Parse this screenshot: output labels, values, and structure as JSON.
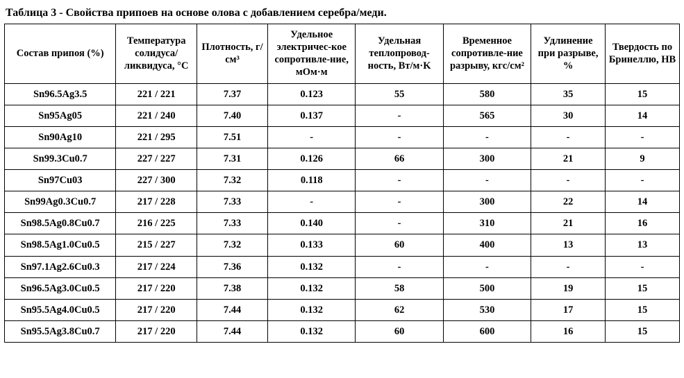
{
  "caption": "Таблица 3 - Свойства припоев на основе олова с добавлением серебра/меди.",
  "table": {
    "columns": [
      "Состав припоя (%)",
      "Температура солидуса/ ликвидуса, °C",
      "Плотность, г/см³",
      "Удельное электричес-кое сопротивле-ние, мОм·м",
      "Удельная теплопровод-ность, Вт/м·K",
      "Временное сопротивле-ние разрыву, кгс/см²",
      "Удлинение при разрыве, %",
      "Твердость по Бринеллю, HB"
    ],
    "rows": [
      [
        "Sn96.5Ag3.5",
        "221 / 221",
        "7.37",
        "0.123",
        "55",
        "580",
        "35",
        "15"
      ],
      [
        "Sn95Ag05",
        "221 / 240",
        "7.40",
        "0.137",
        "-",
        "565",
        "30",
        "14"
      ],
      [
        "Sn90Ag10",
        "221 / 295",
        "7.51",
        "-",
        "-",
        "-",
        "-",
        "-"
      ],
      [
        "Sn99.3Cu0.7",
        "227 / 227",
        "7.31",
        "0.126",
        "66",
        "300",
        "21",
        "9"
      ],
      [
        "Sn97Cu03",
        "227 / 300",
        "7.32",
        "0.118",
        "-",
        "-",
        "-",
        "-"
      ],
      [
        "Sn99Ag0.3Cu0.7",
        "217 / 228",
        "7.33",
        "-",
        "-",
        "300",
        "22",
        "14"
      ],
      [
        "Sn98.5Ag0.8Cu0.7",
        "216 / 225",
        "7.33",
        "0.140",
        "-",
        "310",
        "21",
        "16"
      ],
      [
        "Sn98.5Ag1.0Cu0.5",
        "215 / 227",
        "7.32",
        "0.133",
        "60",
        "400",
        "13",
        "13"
      ],
      [
        "Sn97.1Ag2.6Cu0.3",
        "217 / 224",
        "7.36",
        "0.132",
        "-",
        "-",
        "-",
        "-"
      ],
      [
        "Sn96.5Ag3.0Cu0.5",
        "217 / 220",
        "7.38",
        "0.132",
        "58",
        "500",
        "19",
        "15"
      ],
      [
        "Sn95.5Ag4.0Cu0.5",
        "217 / 220",
        "7.44",
        "0.132",
        "62",
        "530",
        "17",
        "15"
      ],
      [
        "Sn95.5Ag3.8Cu0.7",
        "217 / 220",
        "7.44",
        "0.132",
        "60",
        "600",
        "16",
        "15"
      ]
    ],
    "border_color": "#000000",
    "background_color": "#ffffff",
    "text_color": "#000000",
    "font_family": "Times New Roman",
    "header_fontsize": 14.5,
    "cell_fontsize": 14.5,
    "caption_fontsize": 16
  }
}
